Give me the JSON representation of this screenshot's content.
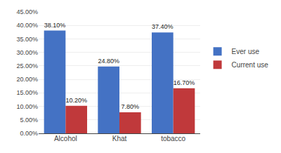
{
  "chart_data": {
    "type": "bar",
    "categories": [
      "Alcohol",
      "Khat",
      "tobacco"
    ],
    "series": [
      {
        "name": "Ever use",
        "color": "#4472C4",
        "values": [
          38.1,
          24.8,
          37.4
        ],
        "value_labels": [
          "38.10%",
          "24.80%",
          "37.40%"
        ]
      },
      {
        "name": "Current use",
        "color": "#C0393B",
        "values": [
          10.2,
          7.8,
          16.7
        ],
        "value_labels": [
          "10.20%",
          "7.80%",
          "16.70%"
        ]
      }
    ],
    "ylim": [
      0,
      45
    ],
    "yticks": [
      {
        "value": 0,
        "label": "0.00%"
      },
      {
        "value": 5,
        "label": "5.00%"
      },
      {
        "value": 10,
        "label": "10.00%"
      },
      {
        "value": 15,
        "label": "15.00%"
      },
      {
        "value": 20,
        "label": "20.00%"
      },
      {
        "value": 25,
        "label": "25.00%"
      },
      {
        "value": 30,
        "label": "30.00%"
      },
      {
        "value": 35,
        "label": "35.00%"
      },
      {
        "value": 40,
        "label": "40.00%"
      },
      {
        "value": 45,
        "label": "45.00%"
      }
    ],
    "grid": true,
    "data_labels": true,
    "legend": "right"
  }
}
